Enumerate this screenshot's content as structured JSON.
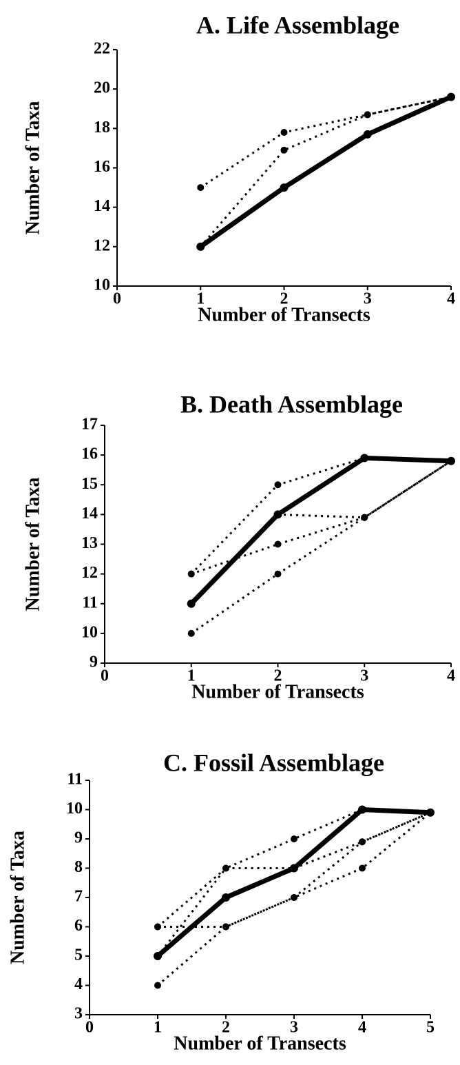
{
  "chart_data": [
    {
      "type": "line",
      "title": "A.   Life   Assemblage",
      "x_label": "Number of Transects",
      "y_label": "Number of Taxa",
      "x": [
        1,
        2,
        3,
        4
      ],
      "xlim": [
        0,
        4
      ],
      "xticks": [
        0,
        1,
        2,
        3,
        4
      ],
      "ylim": [
        10,
        22
      ],
      "yticks": [
        10,
        12,
        14,
        16,
        18,
        20,
        22
      ],
      "series": [
        {
          "color": "#000000",
          "line_style": "solid",
          "values": [
            12,
            15,
            17.7,
            19.6
          ]
        },
        {
          "color": "#000000",
          "line_style": "dotted",
          "values": [
            15,
            17.8,
            18.7,
            19.6
          ]
        },
        {
          "color": "#000000",
          "line_style": "dotted",
          "values": [
            12,
            16.9,
            18.7,
            19.6
          ]
        }
      ]
    },
    {
      "type": "line",
      "title": "B.   Death   Assemblage",
      "x_label": "Number of Transects",
      "y_label": "Number of Taxa",
      "x": [
        1,
        2,
        3,
        4
      ],
      "xlim": [
        0,
        4
      ],
      "xticks": [
        0,
        1,
        2,
        3,
        4
      ],
      "ylim": [
        9,
        17
      ],
      "yticks": [
        9,
        10,
        11,
        12,
        13,
        14,
        15,
        16,
        17
      ],
      "series": [
        {
          "color": "#000000",
          "line_style": "solid",
          "values": [
            11,
            14,
            15.9,
            15.8
          ]
        },
        {
          "color": "#000000",
          "line_style": "dotted",
          "values": [
            12,
            15,
            15.9,
            15.8
          ]
        },
        {
          "color": "#000000",
          "line_style": "dotted",
          "values": [
            12,
            13,
            13.9,
            15.8
          ]
        },
        {
          "color": "#000000",
          "line_style": "dotted",
          "values": [
            10,
            12,
            13.9,
            15.8
          ]
        },
        {
          "color": "#000000",
          "line_style": "dotted",
          "values": [
            11,
            14,
            13.9,
            15.8
          ]
        }
      ]
    },
    {
      "type": "line",
      "title": "C.   Fossil   Assemblage",
      "x_label": "Number of Transects",
      "y_label": "Number of Taxa",
      "x": [
        1,
        2,
        3,
        4,
        5
      ],
      "xlim": [
        0,
        5
      ],
      "xticks": [
        0,
        1,
        2,
        3,
        4,
        5
      ],
      "ylim": [
        3,
        11
      ],
      "yticks": [
        3,
        4,
        5,
        6,
        7,
        8,
        9,
        10,
        11
      ],
      "series": [
        {
          "color": "#000000",
          "line_style": "solid",
          "values": [
            5,
            7,
            8,
            10,
            9.9
          ]
        },
        {
          "color": "#000000",
          "line_style": "dotted",
          "values": [
            6,
            8,
            9,
            10,
            9.9
          ]
        },
        {
          "color": "#000000",
          "line_style": "dotted",
          "values": [
            6,
            6,
            7,
            8.9,
            9.9
          ]
        },
        {
          "color": "#000000",
          "line_style": "dotted",
          "values": [
            4,
            6,
            7,
            8,
            9.9
          ]
        },
        {
          "color": "#000000",
          "line_style": "dotted",
          "values": [
            5,
            8,
            8,
            8.9,
            9.9
          ]
        }
      ]
    }
  ]
}
